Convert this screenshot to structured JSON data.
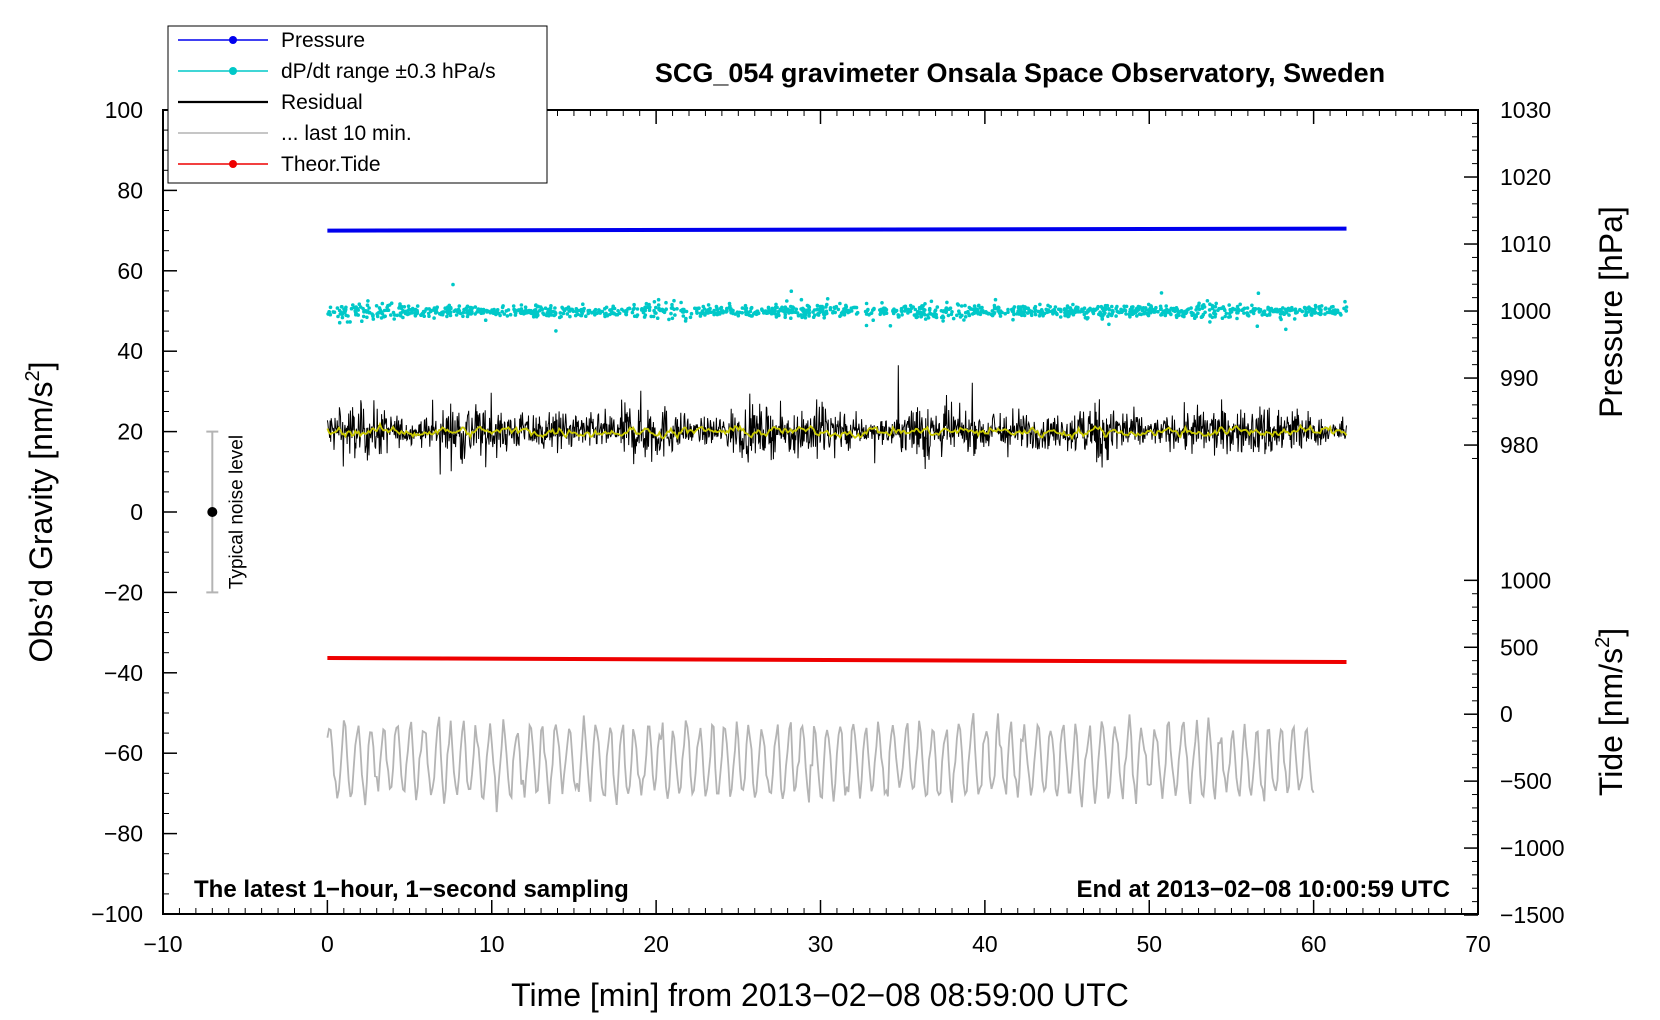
{
  "chart_data": {
    "type": "line",
    "title": "SCG_054 gravimeter Onsala Space Observatory, Sweden",
    "xlabel": "Time [min] from 2013−02−08 08:59:00 UTC",
    "xlim": [
      -10,
      70
    ],
    "xticks": [
      -10,
      0,
      10,
      20,
      30,
      40,
      50,
      60,
      70
    ],
    "xtick_labels": [
      "−10",
      "0",
      "10",
      "20",
      "30",
      "40",
      "50",
      "60",
      "70"
    ],
    "left_axis": {
      "label_main": "Obs’d Gravity [nm/s",
      "label_sup": "2",
      "label_end": "]",
      "ylim": [
        -100,
        100
      ],
      "ticks": [
        100,
        80,
        60,
        40,
        20,
        0,
        -20,
        -40,
        -60,
        -80,
        -100
      ],
      "tick_labels": [
        "100",
        "80",
        "60",
        "40",
        "20",
        "0",
        "−20",
        "−40",
        "−60",
        "−80",
        "−100"
      ]
    },
    "pressure_axis": {
      "label": "Pressure [hPa]",
      "ticks": [
        1030,
        1020,
        1010,
        1000,
        990,
        980
      ],
      "tick_labels": [
        "1030",
        "1020",
        "1010",
        "1000",
        "990",
        "980"
      ],
      "gravity_at_1030": 100,
      "gravity_per_hPa": 1.667
    },
    "tide_axis": {
      "label_main": "Tide [nm/s",
      "label_sup": "2",
      "label_end": "]",
      "ticks": [
        1000,
        500,
        0,
        -500,
        -1000,
        -1500
      ],
      "tick_labels": [
        "1000",
        "500",
        "0",
        "−500",
        "−1000",
        "−1500"
      ],
      "gravity_at_1000": -17,
      "gravity_per_nms2": 0.0333
    },
    "series": [
      {
        "name": "Pressure",
        "color": "#0000ee",
        "x_range": [
          0,
          62
        ],
        "start_value": 1012.0,
        "end_value": 1012.3
      },
      {
        "name": "dP/dt range ±0.3 hPa/s",
        "color": "#00c8c8",
        "center": 50,
        "approx_spread": 1.5
      },
      {
        "name": "Residual",
        "color": "#000000",
        "center": 20,
        "approx_spread": 8
      },
      {
        "name": "... last 10 min.",
        "color": "#b4b4b4",
        "center": -62,
        "approx_range": [
          -78,
          -46
        ]
      },
      {
        "name": "Theor.Tide",
        "color": "#ee0000",
        "x_range": [
          0,
          62
        ],
        "start_value": 420,
        "end_value": 390
      }
    ],
    "smoothed_residual_color": "#c8c800",
    "noise_bar": {
      "x": -7,
      "center": 0,
      "range": [
        -20,
        20
      ],
      "label": "Typical noise level"
    },
    "legend": [
      {
        "label": "Pressure",
        "color": "#0000ee",
        "marker": true
      },
      {
        "label": "dP/dt range ±0.3 hPa/s",
        "color": "#00c8c8",
        "marker": true
      },
      {
        "label": "Residual",
        "color": "#000000",
        "marker": false
      },
      {
        "label": "... last 10 min.",
        "color": "#b4b4b4",
        "marker": false
      },
      {
        "label": "Theor.Tide",
        "color": "#ee0000",
        "marker": true
      }
    ],
    "annotations": {
      "bottom_left": "The latest 1−hour, 1−second sampling",
      "bottom_right": "End at 2013−02−08 10:00:59 UTC"
    }
  }
}
